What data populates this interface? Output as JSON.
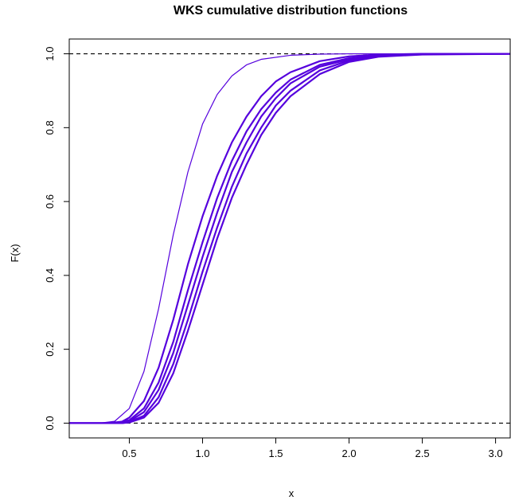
{
  "chart_data": {
    "type": "line",
    "title": "WKS cumulative distribution functions",
    "xlabel": "x",
    "ylabel": "F(x)",
    "xlim": [
      0.09,
      3.1
    ],
    "ylim": [
      -0.04,
      1.04
    ],
    "x_ticks": [
      "0.5",
      "1.0",
      "1.5",
      "2.0",
      "2.5",
      "3.0"
    ],
    "x_tick_values": [
      0.5,
      1.0,
      1.5,
      2.0,
      2.5,
      3.0
    ],
    "y_ticks": [
      "0.0",
      "0.2",
      "0.4",
      "0.6",
      "0.8",
      "1.0"
    ],
    "y_tick_values": [
      0.0,
      0.2,
      0.4,
      0.6,
      0.8,
      1.0
    ],
    "reference_lines": [
      {
        "y": 0.0,
        "style": "dashed",
        "color": "#000000"
      },
      {
        "y": 1.0,
        "style": "dashed",
        "color": "#000000"
      }
    ],
    "series_color": "#5500dd",
    "series": [
      {
        "x": [
          0.09,
          0.3,
          0.4,
          0.5,
          0.6,
          0.7,
          0.8,
          0.9,
          1.0,
          1.1,
          1.2,
          1.3,
          1.4,
          1.6,
          1.8,
          2.0,
          2.5,
          3.1
        ],
        "y": [
          0.0,
          0.0,
          0.005,
          0.04,
          0.14,
          0.31,
          0.51,
          0.68,
          0.81,
          0.89,
          0.94,
          0.97,
          0.985,
          0.996,
          0.999,
          1.0,
          1.0,
          1.0
        ]
      },
      {
        "x": [
          0.09,
          0.35,
          0.45,
          0.5,
          0.6,
          0.7,
          0.8,
          0.9,
          1.0,
          1.1,
          1.2,
          1.3,
          1.4,
          1.5,
          1.6,
          1.8,
          2.0,
          2.2,
          2.5,
          3.1
        ],
        "y": [
          0.0,
          0.0,
          0.004,
          0.015,
          0.06,
          0.15,
          0.28,
          0.43,
          0.56,
          0.67,
          0.76,
          0.83,
          0.885,
          0.925,
          0.95,
          0.98,
          0.993,
          0.998,
          1.0,
          1.0
        ]
      },
      {
        "x": [
          0.09,
          0.4,
          0.5,
          0.6,
          0.7,
          0.8,
          0.9,
          1.0,
          1.1,
          1.2,
          1.3,
          1.4,
          1.5,
          1.6,
          1.8,
          2.0,
          2.2,
          2.5,
          3.1
        ],
        "y": [
          0.0,
          0.0,
          0.008,
          0.04,
          0.11,
          0.22,
          0.36,
          0.49,
          0.61,
          0.71,
          0.79,
          0.85,
          0.895,
          0.93,
          0.97,
          0.988,
          0.996,
          0.9995,
          1.0
        ]
      },
      {
        "x": [
          0.09,
          0.4,
          0.5,
          0.6,
          0.7,
          0.8,
          0.9,
          1.0,
          1.1,
          1.2,
          1.3,
          1.4,
          1.5,
          1.6,
          1.8,
          2.0,
          2.2,
          2.5,
          3.1
        ],
        "y": [
          0.0,
          0.0,
          0.005,
          0.03,
          0.09,
          0.19,
          0.32,
          0.45,
          0.57,
          0.68,
          0.76,
          0.83,
          0.88,
          0.92,
          0.965,
          0.985,
          0.995,
          0.999,
          1.0
        ]
      },
      {
        "x": [
          0.09,
          0.45,
          0.5,
          0.6,
          0.7,
          0.8,
          0.9,
          1.0,
          1.1,
          1.2,
          1.3,
          1.4,
          1.5,
          1.6,
          1.8,
          2.0,
          2.2,
          2.5,
          3.1
        ],
        "y": [
          0.0,
          0.0,
          0.003,
          0.02,
          0.07,
          0.16,
          0.28,
          0.41,
          0.53,
          0.64,
          0.73,
          0.8,
          0.86,
          0.9,
          0.955,
          0.982,
          0.994,
          0.999,
          1.0
        ]
      },
      {
        "x": [
          0.09,
          0.45,
          0.5,
          0.6,
          0.7,
          0.8,
          0.9,
          1.0,
          1.1,
          1.2,
          1.3,
          1.4,
          1.5,
          1.6,
          1.8,
          2.0,
          2.2,
          2.5,
          3.1
        ],
        "y": [
          0.0,
          0.0,
          0.002,
          0.015,
          0.055,
          0.135,
          0.25,
          0.375,
          0.5,
          0.61,
          0.7,
          0.78,
          0.84,
          0.885,
          0.945,
          0.978,
          0.992,
          0.998,
          1.0
        ]
      }
    ]
  }
}
